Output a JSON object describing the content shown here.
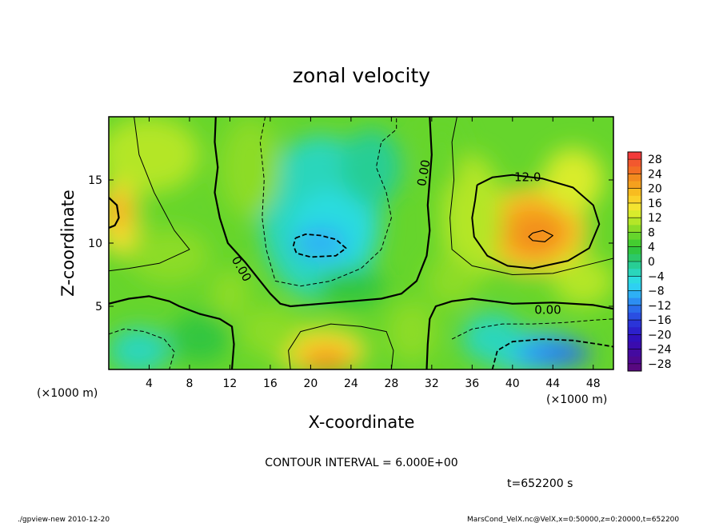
{
  "chart_data": {
    "type": "heatmap",
    "title": "zonal velocity",
    "xlabel": "X-coordinate",
    "ylabel": "Z-coordinate",
    "x_unit": "(×1000 m)",
    "y_unit": "(×1000 m)",
    "xlim": [
      0,
      50
    ],
    "ylim": [
      0,
      20
    ],
    "x_ticks": [
      4,
      8,
      12,
      16,
      20,
      24,
      28,
      32,
      36,
      40,
      44,
      48
    ],
    "y_ticks": [
      5,
      10,
      15
    ],
    "contour_interval": "CONTOUR INTERVAL = 6.000E+00",
    "time": "t=652200 s",
    "contour_labels": [
      "12.0",
      "0.00",
      "0.00",
      "0.00"
    ],
    "colorbar": {
      "labels": [
        "28",
        "24",
        "20",
        "16",
        "12",
        "8",
        "4",
        "0",
        "−4",
        "−8",
        "−12",
        "−16",
        "−20",
        "−24",
        "−28"
      ],
      "levels": [
        30,
        28,
        26,
        24,
        22,
        20,
        18,
        16,
        14,
        12,
        10,
        8,
        6,
        4,
        2,
        0,
        -2,
        -4,
        -6,
        -8,
        -10,
        -12,
        -14,
        -16,
        -18,
        -20,
        -22,
        -24,
        -26,
        -28,
        -30
      ],
      "colors": [
        "#f23a3a",
        "#f2582e",
        "#f26e24",
        "#f28a1e",
        "#f5a01e",
        "#f8bc20",
        "#fad22a",
        "#f4e430",
        "#d9ec2c",
        "#b4e628",
        "#8cdc28",
        "#66d52c",
        "#44cd30",
        "#30c640",
        "#2cc868",
        "#28ce94",
        "#2ad6bb",
        "#2cdce0",
        "#2ed0f2",
        "#2eb0f4",
        "#2c8ef2",
        "#2a6ceb",
        "#2a4ee2",
        "#2a34d8",
        "#2c20cc",
        "#3010bc",
        "#3a0cae",
        "#440aa0",
        "#4e0890",
        "#580880"
      ]
    },
    "footer_left": "./gpview-new  2010-12-20",
    "footer_right": "MarsCond_VelX.nc@VelX,x=0:50000,z=0:20000,t=652200"
  }
}
